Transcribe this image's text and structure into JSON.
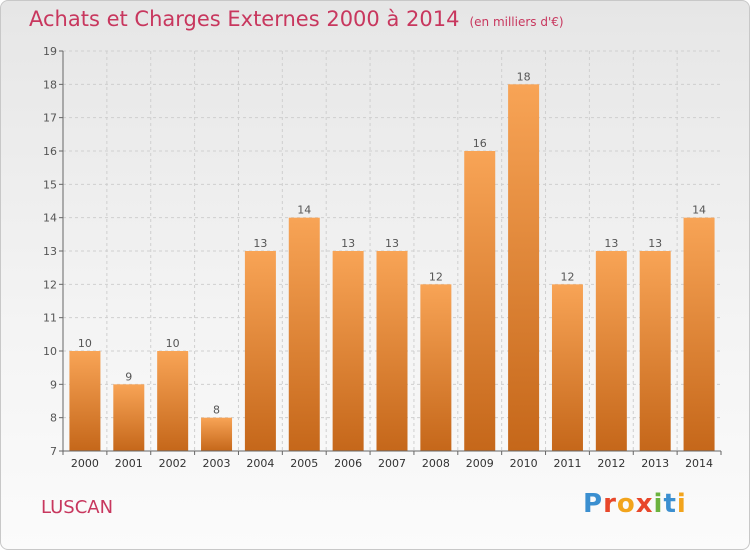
{
  "header": {
    "title": "Achats et Charges Externes 2000 à 2014",
    "unit": "(en milliers d'€)"
  },
  "footer": {
    "city": "LUSCAN",
    "logo_parts": [
      "P",
      "r",
      "o",
      "x",
      "i",
      "t",
      "i"
    ]
  },
  "colors": {
    "title": "#c8375e",
    "bar_top": "#f8a456",
    "bar_bottom": "#c5671a",
    "axis": "#666666",
    "grid": "#cfcfcf",
    "label": "#555555"
  },
  "chart_data": {
    "type": "bar",
    "title": "Achats et Charges Externes 2000 à 2014",
    "subtitle": "(en milliers d'€)",
    "xlabel": "",
    "ylabel": "",
    "ylim": [
      7,
      19
    ],
    "yticks": [
      7,
      8,
      9,
      10,
      11,
      12,
      13,
      14,
      15,
      16,
      17,
      18,
      19
    ],
    "grid": true,
    "categories": [
      "2000",
      "2001",
      "2002",
      "2003",
      "2004",
      "2005",
      "2006",
      "2007",
      "2008",
      "2009",
      "2010",
      "2011",
      "2012",
      "2013",
      "2014"
    ],
    "values": [
      10,
      9,
      10,
      8,
      13,
      14,
      13,
      13,
      12,
      16,
      18,
      12,
      13,
      13,
      14
    ]
  }
}
